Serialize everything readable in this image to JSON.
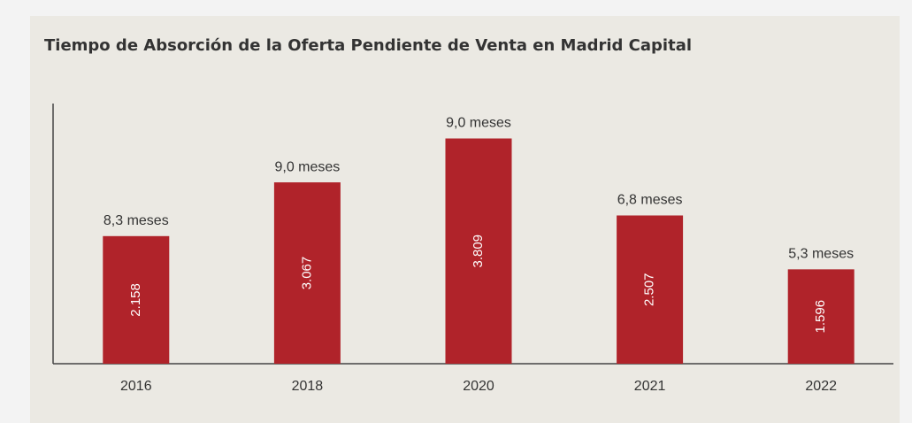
{
  "chart_data": {
    "type": "bar",
    "title": "Tiempo de Absorción de la Oferta Pendiente de Venta en Madrid Capital",
    "categories": [
      "2016",
      "2018",
      "2020",
      "2021",
      "2022"
    ],
    "values": [
      2158,
      3067,
      3809,
      2507,
      1596
    ],
    "value_labels": [
      "2.158",
      "3.067",
      "3.809",
      "2.507",
      "1.596"
    ],
    "annotations": [
      "8,3 meses",
      "9,0 meses",
      "9,0 meses",
      "6,8 meses",
      "5,3 meses"
    ],
    "color": "#b0232a",
    "ylim": [
      0,
      4400
    ]
  }
}
